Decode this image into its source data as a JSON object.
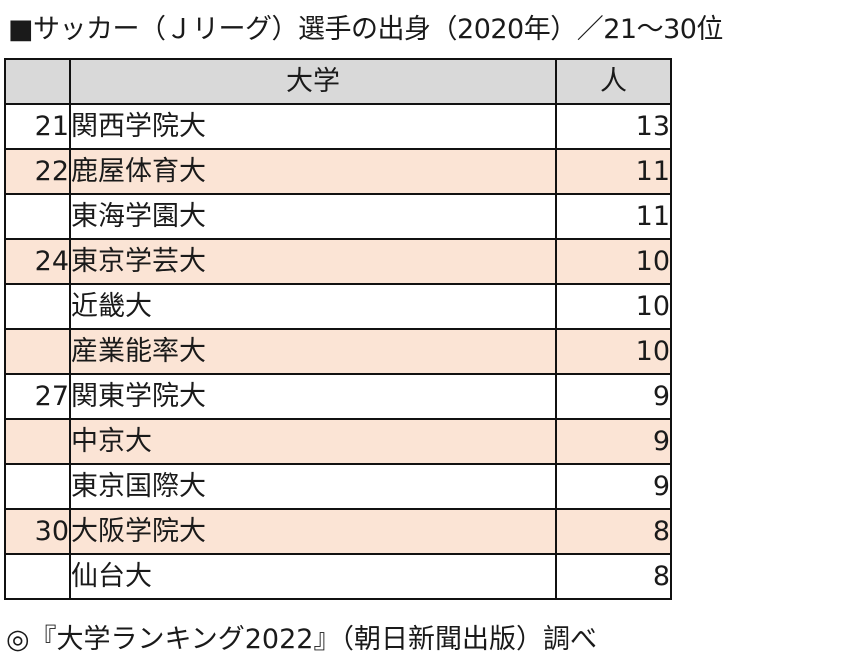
{
  "title": "■サッカー（Ｊリーグ）選手の出身（2020年）／21〜30位",
  "table": {
    "headers": [
      "",
      "大学",
      "人"
    ],
    "rows": [
      {
        "rank": "21",
        "name": "関西学院大",
        "count": "13"
      },
      {
        "rank": "22",
        "name": "鹿屋体育大",
        "count": "11"
      },
      {
        "rank": "",
        "name": "東海学園大",
        "count": "11"
      },
      {
        "rank": "24",
        "name": "東京学芸大",
        "count": "10"
      },
      {
        "rank": "",
        "name": "近畿大",
        "count": "10"
      },
      {
        "rank": "",
        "name": "産業能率大",
        "count": "10"
      },
      {
        "rank": "27",
        "name": "関東学院大",
        "count": "9"
      },
      {
        "rank": "",
        "name": "中京大",
        "count": "9"
      },
      {
        "rank": "",
        "name": "東京国際大",
        "count": "9"
      },
      {
        "rank": "30",
        "name": "大阪学院大",
        "count": "8"
      },
      {
        "rank": "",
        "name": "仙台大",
        "count": "8"
      }
    ]
  },
  "source": "◎『大学ランキング2022』（朝日新聞出版）調べ",
  "colors": {
    "header_bg": "#d9d9d9",
    "shaded_row": "#fbe4d5",
    "plain_row": "#ffffff",
    "border": "#111111"
  }
}
